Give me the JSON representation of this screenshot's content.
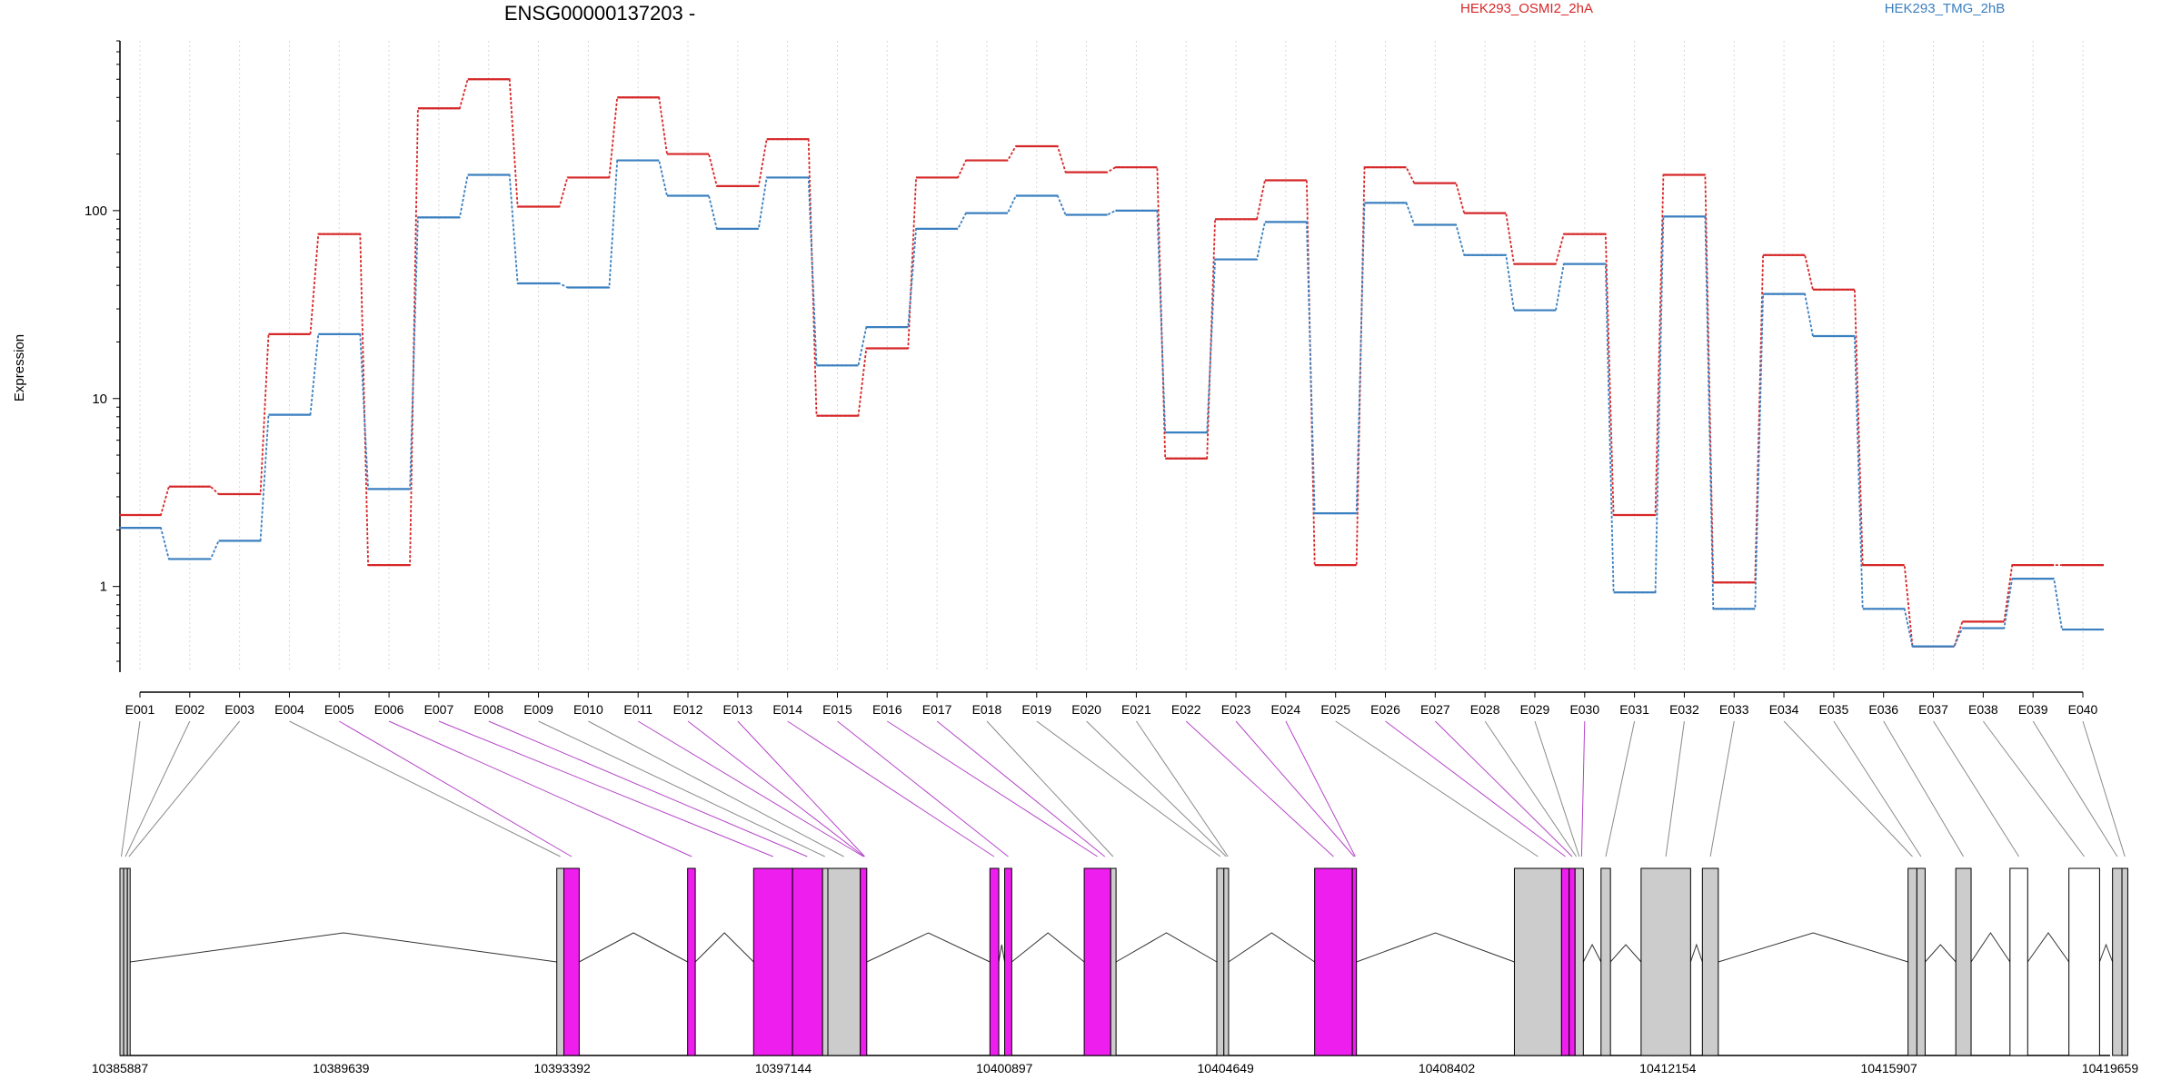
{
  "chart_data": {
    "type": "line",
    "title": "ENSG00000137203 -",
    "ylabel": "Expression",
    "yscale": "log",
    "ylim": [
      0.35,
      800
    ],
    "yticks": [
      1,
      10,
      100
    ],
    "ytick_labels": [
      "1",
      "10",
      "100"
    ],
    "legend_placement": "top",
    "grid": "vertical-dotted",
    "categories": [
      "E001",
      "E002",
      "E003",
      "E004",
      "E005",
      "E006",
      "E007",
      "E008",
      "E009",
      "E010",
      "E011",
      "E012",
      "E013",
      "E014",
      "E015",
      "E016",
      "E017",
      "E018",
      "E019",
      "E020",
      "E021",
      "E022",
      "E023",
      "E024",
      "E025",
      "E026",
      "E027",
      "E028",
      "E029",
      "E030",
      "E031",
      "E032",
      "E033",
      "E034",
      "E035",
      "E036",
      "E037",
      "E038",
      "E039",
      "E040"
    ],
    "series": [
      {
        "name": "HEK293_OSMI2_2hA",
        "color": "#d62728",
        "values": [
          2.4,
          3.4,
          3.1,
          22,
          75,
          1.3,
          350,
          500,
          105,
          150,
          400,
          200,
          135,
          240,
          8.1,
          18.5,
          150,
          185,
          220,
          160,
          170,
          4.8,
          90,
          145,
          1.3,
          170,
          140,
          97,
          52,
          75,
          2.4,
          155,
          1.05,
          58,
          38,
          1.3,
          0.48,
          0.65,
          1.3,
          1.3
        ]
      },
      {
        "name": "HEK293_TMG_2hB",
        "color": "#3a7fbf",
        "values": [
          2.05,
          1.4,
          1.75,
          8.2,
          22,
          3.3,
          92,
          155,
          41,
          39,
          185,
          120,
          80,
          150,
          15,
          24,
          80,
          97,
          120,
          95,
          100,
          6.6,
          55,
          87,
          2.45,
          110,
          84,
          58,
          29.5,
          52,
          0.93,
          93,
          0.76,
          36,
          21.5,
          0.76,
          0.48,
          0.6,
          1.1,
          0.59
        ]
      }
    ]
  },
  "gene_model": {
    "coordinate_labels": [
      "10385887",
      "10389639",
      "10393392",
      "10397144",
      "10400897",
      "10404649",
      "10408402",
      "10412154",
      "10415907",
      "10419659"
    ],
    "coord_start": 10385887,
    "coord_end": 10419659,
    "highlight_color": "#ee1eee",
    "constitutive_color": "#cccccc",
    "other_color": "#ffffff",
    "exons": [
      {
        "start": 10385887,
        "end": 10385950,
        "type": "grey"
      },
      {
        "start": 10385950,
        "end": 10386013,
        "type": "grey"
      },
      {
        "start": 10386013,
        "end": 10386060,
        "type": "grey"
      },
      {
        "start": 10393300,
        "end": 10393420,
        "type": "grey"
      },
      {
        "start": 10393420,
        "end": 10393680,
        "type": "pink"
      },
      {
        "start": 10395520,
        "end": 10395650,
        "type": "pink"
      },
      {
        "start": 10396640,
        "end": 10397300,
        "type": "pink"
      },
      {
        "start": 10397300,
        "end": 10397810,
        "type": "pink"
      },
      {
        "start": 10397810,
        "end": 10397900,
        "type": "grey"
      },
      {
        "start": 10397900,
        "end": 10398450,
        "type": "grey"
      },
      {
        "start": 10398450,
        "end": 10398560,
        "type": "pink"
      },
      {
        "start": 10400650,
        "end": 10400800,
        "type": "pink"
      },
      {
        "start": 10400900,
        "end": 10401020,
        "type": "pink"
      },
      {
        "start": 10402250,
        "end": 10402700,
        "type": "pink"
      },
      {
        "start": 10402700,
        "end": 10402790,
        "type": "grey"
      },
      {
        "start": 10404500,
        "end": 10404620,
        "type": "grey"
      },
      {
        "start": 10404620,
        "end": 10404700,
        "type": "grey"
      },
      {
        "start": 10406160,
        "end": 10406800,
        "type": "pink"
      },
      {
        "start": 10406800,
        "end": 10406870,
        "type": "pink"
      },
      {
        "start": 10409550,
        "end": 10410350,
        "type": "grey"
      },
      {
        "start": 10410350,
        "end": 10410480,
        "type": "pink"
      },
      {
        "start": 10410480,
        "end": 10410580,
        "type": "pink"
      },
      {
        "start": 10410580,
        "end": 10410720,
        "type": "grey"
      },
      {
        "start": 10411020,
        "end": 10411180,
        "type": "grey"
      },
      {
        "start": 10411700,
        "end": 10412540,
        "type": "grey"
      },
      {
        "start": 10412740,
        "end": 10413010,
        "type": "grey"
      },
      {
        "start": 10416230,
        "end": 10416380,
        "type": "grey"
      },
      {
        "start": 10416380,
        "end": 10416520,
        "type": "grey"
      },
      {
        "start": 10417040,
        "end": 10417300,
        "type": "grey"
      },
      {
        "start": 10417960,
        "end": 10418260,
        "type": "white"
      },
      {
        "start": 10418960,
        "end": 10419480,
        "type": "white"
      },
      {
        "start": 10419700,
        "end": 10419860,
        "type": "grey"
      },
      {
        "start": 10419860,
        "end": 10419959,
        "type": "grey"
      }
    ],
    "exon_connections": [
      {
        "exon": "E001",
        "pos": 10385910,
        "type": "grey"
      },
      {
        "exon": "E002",
        "pos": 10385980,
        "type": "grey"
      },
      {
        "exon": "E003",
        "pos": 10386040,
        "type": "grey"
      },
      {
        "exon": "E004",
        "pos": 10393360,
        "type": "grey"
      },
      {
        "exon": "E005",
        "pos": 10393550,
        "type": "pink"
      },
      {
        "exon": "E006",
        "pos": 10395590,
        "type": "pink"
      },
      {
        "exon": "E007",
        "pos": 10396970,
        "type": "pink"
      },
      {
        "exon": "E008",
        "pos": 10397550,
        "type": "pink"
      },
      {
        "exon": "E009",
        "pos": 10397850,
        "type": "grey"
      },
      {
        "exon": "E010",
        "pos": 10398170,
        "type": "grey"
      },
      {
        "exon": "E011",
        "pos": 10398505,
        "type": "pink"
      },
      {
        "exon": "E012",
        "pos": 10398515,
        "type": "pink"
      },
      {
        "exon": "E013",
        "pos": 10398525,
        "type": "pink"
      },
      {
        "exon": "E014",
        "pos": 10400720,
        "type": "pink"
      },
      {
        "exon": "E015",
        "pos": 10400960,
        "type": "pink"
      },
      {
        "exon": "E016",
        "pos": 10402475,
        "type": "pink"
      },
      {
        "exon": "E017",
        "pos": 10402600,
        "type": "pink"
      },
      {
        "exon": "E018",
        "pos": 10402740,
        "type": "grey"
      },
      {
        "exon": "E019",
        "pos": 10404560,
        "type": "grey"
      },
      {
        "exon": "E020",
        "pos": 10404660,
        "type": "grey"
      },
      {
        "exon": "E021",
        "pos": 10404690,
        "type": "grey"
      },
      {
        "exon": "E022",
        "pos": 10406480,
        "type": "pink"
      },
      {
        "exon": "E023",
        "pos": 10406830,
        "type": "pink"
      },
      {
        "exon": "E024",
        "pos": 10406850,
        "type": "pink"
      },
      {
        "exon": "E025",
        "pos": 10409950,
        "type": "grey"
      },
      {
        "exon": "E026",
        "pos": 10410415,
        "type": "pink"
      },
      {
        "exon": "E027",
        "pos": 10410530,
        "type": "pink"
      },
      {
        "exon": "E028",
        "pos": 10410600,
        "type": "grey"
      },
      {
        "exon": "E029",
        "pos": 10410650,
        "type": "grey"
      },
      {
        "exon": "E030",
        "pos": 10410690,
        "type": "pink"
      },
      {
        "exon": "E031",
        "pos": 10411100,
        "type": "grey"
      },
      {
        "exon": "E032",
        "pos": 10412120,
        "type": "grey"
      },
      {
        "exon": "E033",
        "pos": 10412875,
        "type": "grey"
      },
      {
        "exon": "E034",
        "pos": 10416305,
        "type": "grey"
      },
      {
        "exon": "E035",
        "pos": 10416450,
        "type": "grey"
      },
      {
        "exon": "E036",
        "pos": 10417170,
        "type": "grey"
      },
      {
        "exon": "E037",
        "pos": 10418110,
        "type": "grey"
      },
      {
        "exon": "E038",
        "pos": 10419220,
        "type": "grey"
      },
      {
        "exon": "E039",
        "pos": 10419780,
        "type": "grey"
      },
      {
        "exon": "E040",
        "pos": 10419910,
        "type": "grey"
      }
    ]
  }
}
